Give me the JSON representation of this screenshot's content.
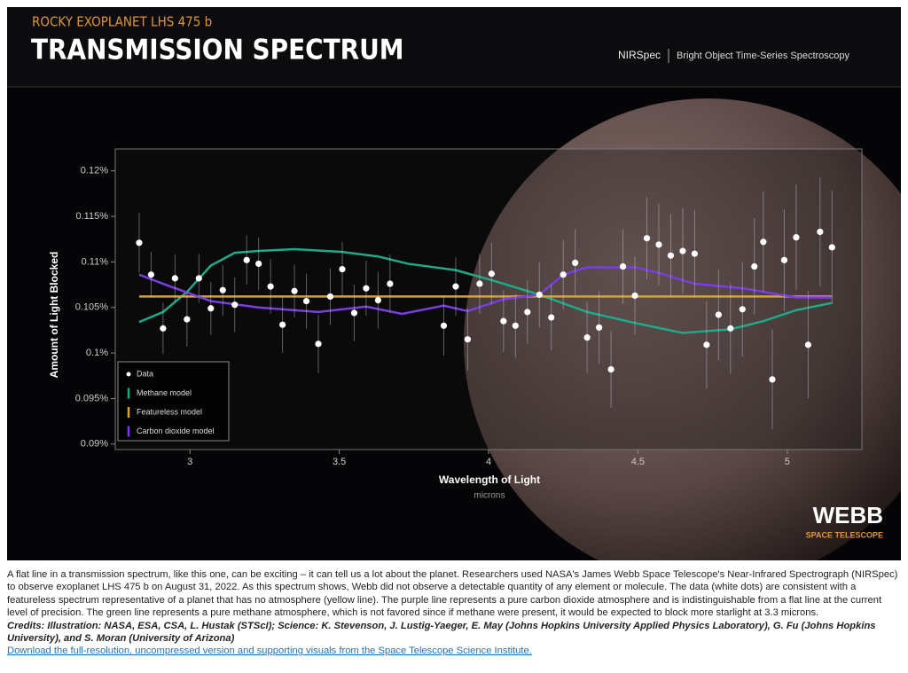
{
  "header": {
    "kicker": "ROCKY EXOPLANET LHS 475 b",
    "title": "TRANSMISSION SPECTRUM",
    "instrument": "NIRSpec",
    "mode": "Bright Object Time-Series Spectroscopy"
  },
  "logo": {
    "name": "WEBB",
    "subtitle": "SPACE TELESCOPE"
  },
  "chart_data": {
    "type": "line",
    "y_label": "Amount of Light Blocked",
    "x_label": "Wavelength of Light",
    "x_unit": "microns",
    "xlim": [
      2.75,
      5.25
    ],
    "xticks": [
      3,
      3.5,
      4,
      4.5,
      5
    ],
    "ylim": [
      0.0894,
      0.1224
    ],
    "yticks": [
      {
        "value": 0.09,
        "label": "0.09%"
      },
      {
        "value": 0.095,
        "label": "0.095%"
      },
      {
        "value": 0.1,
        "label": "0.1%"
      },
      {
        "value": 0.105,
        "label": "0.105%"
      },
      {
        "value": 0.11,
        "label": "0.11%"
      },
      {
        "value": 0.115,
        "label": "0.115%"
      },
      {
        "value": 0.12,
        "label": "0.12%"
      }
    ],
    "legend": "lower left",
    "series": [
      {
        "name": "Data",
        "type": "scatter",
        "color": "#ffffff",
        "x": [
          2.83,
          2.87,
          2.91,
          2.95,
          2.99,
          3.03,
          3.07,
          3.11,
          3.15,
          3.19,
          3.23,
          3.27,
          3.31,
          3.35,
          3.39,
          3.43,
          3.47,
          3.51,
          3.55,
          3.59,
          3.63,
          3.67,
          3.85,
          3.89,
          3.93,
          3.97,
          4.01,
          4.05,
          4.09,
          4.13,
          4.17,
          4.21,
          4.25,
          4.29,
          4.33,
          4.37,
          4.41,
          4.45,
          4.49,
          4.53,
          4.57,
          4.61,
          4.65,
          4.69,
          4.73,
          4.77,
          4.81,
          4.85,
          4.89,
          4.92,
          4.95,
          4.99,
          5.03,
          5.07,
          5.11,
          5.15
        ],
        "values": [
          0.1121,
          0.1086,
          0.1027,
          0.1082,
          0.1037,
          0.1082,
          0.1049,
          0.1069,
          0.1053,
          0.1102,
          0.1098,
          0.1073,
          0.1031,
          0.1068,
          0.1057,
          0.101,
          0.1062,
          0.1092,
          0.1044,
          0.1071,
          0.1058,
          0.1076,
          0.103,
          0.1073,
          0.1015,
          0.1076,
          0.1087,
          0.1035,
          0.103,
          0.1045,
          0.1064,
          0.1039,
          0.1086,
          0.1099,
          0.1017,
          0.1028,
          0.0982,
          0.1095,
          0.1063,
          0.1126,
          0.1119,
          0.1107,
          0.1112,
          0.1109,
          0.1009,
          0.1042,
          0.1027,
          0.1048,
          0.1095,
          0.1122,
          0.0971,
          0.1102,
          0.1127,
          0.1009,
          0.1133,
          0.1116
        ],
        "errors": [
          0.0033,
          0.0025,
          0.0028,
          0.0026,
          0.003,
          0.0027,
          0.0029,
          0.0028,
          0.003,
          0.0027,
          0.0029,
          0.003,
          0.0031,
          0.0029,
          0.003,
          0.0032,
          0.0031,
          0.003,
          0.0031,
          0.003,
          0.0031,
          0.0032,
          0.0033,
          0.0032,
          0.0034,
          0.0033,
          0.0034,
          0.0034,
          0.0035,
          0.0035,
          0.0036,
          0.0036,
          0.0038,
          0.0037,
          0.0039,
          0.004,
          0.0042,
          0.0041,
          0.0043,
          0.0045,
          0.0045,
          0.0046,
          0.0047,
          0.0048,
          0.0048,
          0.005,
          0.005,
          0.0052,
          0.0053,
          0.0055,
          0.0055,
          0.0056,
          0.0058,
          0.0059,
          0.006,
          0.0062
        ]
      },
      {
        "name": "Methane model",
        "color": "#1fa98a",
        "x": [
          2.83,
          2.91,
          2.99,
          3.07,
          3.15,
          3.23,
          3.35,
          3.51,
          3.63,
          3.73,
          3.89,
          4.01,
          4.17,
          4.33,
          4.49,
          4.65,
          4.81,
          4.92,
          5.03,
          5.15
        ],
        "values": [
          0.1034,
          0.1045,
          0.1067,
          0.1096,
          0.111,
          0.1112,
          0.1114,
          0.1111,
          0.1106,
          0.1098,
          0.1091,
          0.108,
          0.1064,
          0.1045,
          0.1033,
          0.1022,
          0.1026,
          0.1035,
          0.1047,
          0.1055
        ]
      },
      {
        "name": "Featureless model",
        "color": "#d9a13a",
        "x": [
          2.83,
          5.15
        ],
        "values": [
          0.1062,
          0.1062
        ]
      },
      {
        "name": "Carbon dioxide model",
        "color": "#7a3ee0",
        "x": [
          2.83,
          2.91,
          3.07,
          3.23,
          3.43,
          3.59,
          3.71,
          3.85,
          3.93,
          4.05,
          4.17,
          4.25,
          4.33,
          4.49,
          4.57,
          4.69,
          4.85,
          4.96,
          5.03,
          5.15
        ],
        "values": [
          0.1086,
          0.1076,
          0.1057,
          0.105,
          0.1045,
          0.1051,
          0.1043,
          0.1052,
          0.1046,
          0.1059,
          0.1064,
          0.1086,
          0.1094,
          0.1094,
          0.1088,
          0.1076,
          0.1071,
          0.1065,
          0.1061,
          0.1061
        ]
      }
    ]
  },
  "caption": "A flat line in a transmission spectrum, like this one, can be exciting – it can tell us a lot about the planet. Researchers used NASA's James Webb Space Telescope's Near-Infrared Spectrograph (NIRSpec) to observe exoplanet LHS 475 b on August 31, 2022. As this spectrum shows, Webb did not observe a detectable quantity of any element or molecule. The data (white dots) are consistent with a featureless spectrum representative of a planet that has no atmosphere (yellow line). The purple line represents a pure carbon dioxide atmosphere and is indistinguishable from a flat line at the current level of precision. The green line represents a pure methane atmosphere, which is not favored since if methane were present, it would be expected to block more starlight at 3.3 microns.",
  "credits": "Credits: Illustration: NASA, ESA, CSA, L. Hustak (STScI); Science: K. Stevenson, J. Lustig-Yaeger, E. May (Johns Hopkins University Applied Physics Laboratory), G. Fu (Johns Hopkins University), and S. Moran (University of Arizona)",
  "link": "Download the full-resolution, uncompressed version and supporting visuals from the Space Telescope Science Institute."
}
